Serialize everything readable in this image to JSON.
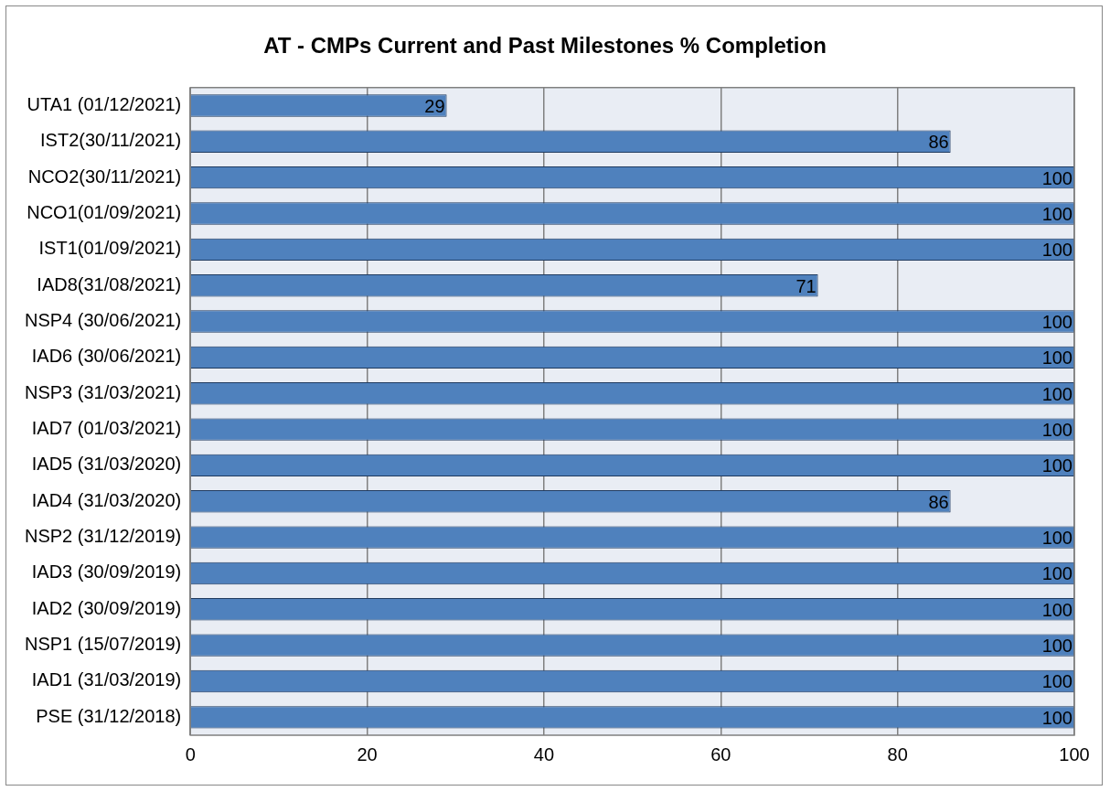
{
  "chart_data": {
    "type": "bar",
    "orientation": "horizontal",
    "title": "AT - CMPs Current and Past Milestones % Completion",
    "categories": [
      "UTA1 (01/12/2021)",
      "IST2(30/11/2021)",
      "NCO2(30/11/2021)",
      "NCO1(01/09/2021)",
      "IST1(01/09/2021)",
      "IAD8(31/08/2021)",
      "NSP4 (30/06/2021)",
      "IAD6 (30/06/2021)",
      "NSP3 (31/03/2021)",
      "IAD7 (01/03/2021)",
      "IAD5 (31/03/2020)",
      "IAD4 (31/03/2020)",
      "NSP2 (31/12/2019)",
      "IAD3 (30/09/2019)",
      "IAD2 (30/09/2019)",
      "NSP1 (15/07/2019)",
      "IAD1 (31/03/2019)",
      "PSE (31/12/2018)"
    ],
    "values": [
      29,
      86,
      100,
      100,
      100,
      71,
      100,
      100,
      100,
      100,
      100,
      86,
      100,
      100,
      100,
      100,
      100,
      100
    ],
    "color": "#4f81bd",
    "xlim": [
      0,
      100
    ],
    "xticks": [
      0,
      20,
      40,
      60,
      80,
      100
    ],
    "grid": "x",
    "legend": false,
    "data_labels": true
  }
}
